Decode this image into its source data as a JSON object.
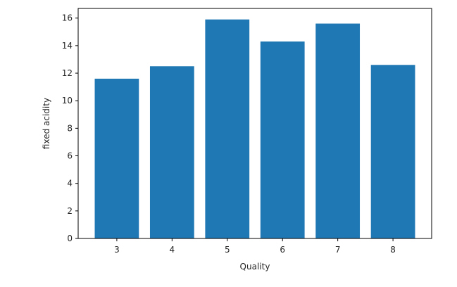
{
  "chart_data": {
    "type": "bar",
    "categories": [
      "3",
      "4",
      "5",
      "6",
      "7",
      "8"
    ],
    "values": [
      11.6,
      12.5,
      15.9,
      14.3,
      15.6,
      12.6
    ],
    "xlabel": "Quality",
    "ylabel": "fixed acidity",
    "ylim": [
      0,
      16.7
    ],
    "yticks": [
      0,
      2,
      4,
      6,
      8,
      10,
      12,
      14,
      16
    ],
    "bar_color": "#1f77b4",
    "grid": false
  }
}
